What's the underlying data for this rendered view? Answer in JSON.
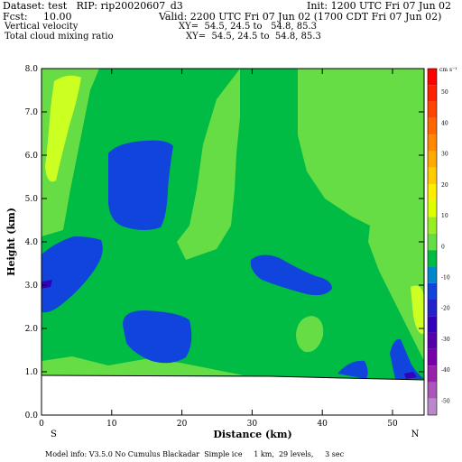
{
  "header": {
    "line1_left": "Dataset: test   RIP: rip20020607_d3",
    "line1_right": "Init: 1200 UTC Fri 07 Jun 02",
    "line2_left": "Fcst:     10.00",
    "line2_right": "Valid: 2200 UTC Fri 07 Jun 02 (1700 CDT Fri 07 Jun 02)",
    "line3_left": "Vertical velocity",
    "line3_right": "XY=  54.5, 24.5 to   54.8, 85.3",
    "line4_left": "Total cloud mixing ratio",
    "line4_right": "XY=  54.5, 24.5 to  54.8, 85.3"
  },
  "footer": {
    "model_info": "Model info: V3.5.0 No Cumulus Blackadar  Simple ice     1 km,  29 levels,     3 sec"
  },
  "chart_data": {
    "type": "heatmap",
    "title": "",
    "xlabel": "Distance (km)",
    "ylabel": "Height (km)",
    "xlim": [
      0,
      54.5
    ],
    "ylim": [
      0,
      8
    ],
    "x_ticks": [
      0,
      10,
      20,
      30,
      40,
      50
    ],
    "y_ticks": [
      0.0,
      1.0,
      2.0,
      3.0,
      4.0,
      5.0,
      6.0,
      7.0,
      8.0
    ],
    "y_tick_labels": [
      "0.0",
      "1.0",
      "2.0",
      "3.0",
      "4.0",
      "5.0",
      "6.0",
      "7.0",
      "8.0"
    ],
    "endpoint_labels": {
      "left": "S",
      "right": "N"
    },
    "colorbar": {
      "units": "cm s⁻¹",
      "tick_labels": [
        "50",
        "40",
        "30",
        "20",
        "10",
        "0",
        "-10",
        "-20",
        "-30",
        "-40",
        "-50"
      ],
      "bins": [
        {
          "color": "#ff0000"
        },
        {
          "color": "#ff2200"
        },
        {
          "color": "#ff4400"
        },
        {
          "color": "#ff6600"
        },
        {
          "color": "#ff8800"
        },
        {
          "color": "#ffaa00"
        },
        {
          "color": "#ffcc00"
        },
        {
          "color": "#ffee00"
        },
        {
          "color": "#ddff00"
        },
        {
          "color": "#99ee22"
        },
        {
          "color": "#66dd44"
        },
        {
          "color": "#00bb44"
        },
        {
          "color": "#0088cc"
        },
        {
          "color": "#1144dd"
        },
        {
          "color": "#2222cc"
        },
        {
          "color": "#3300bb"
        },
        {
          "color": "#5500aa"
        },
        {
          "color": "#7700aa"
        },
        {
          "color": "#9922aa"
        },
        {
          "color": "#aa55bb"
        },
        {
          "color": "#bb88cc"
        }
      ]
    },
    "fields": [
      {
        "name": "background",
        "color": "#00bb44"
      },
      {
        "name": "light_green",
        "color": "#66dd44"
      },
      {
        "name": "yellow_green",
        "color": "#ccff22"
      },
      {
        "name": "blue",
        "color": "#1144dd"
      }
    ],
    "terrain_top_km": [
      0.9,
      0.9,
      0.88,
      0.85,
      0.82
    ],
    "terrain_x_km": [
      0,
      30,
      40,
      50,
      54.5
    ]
  }
}
